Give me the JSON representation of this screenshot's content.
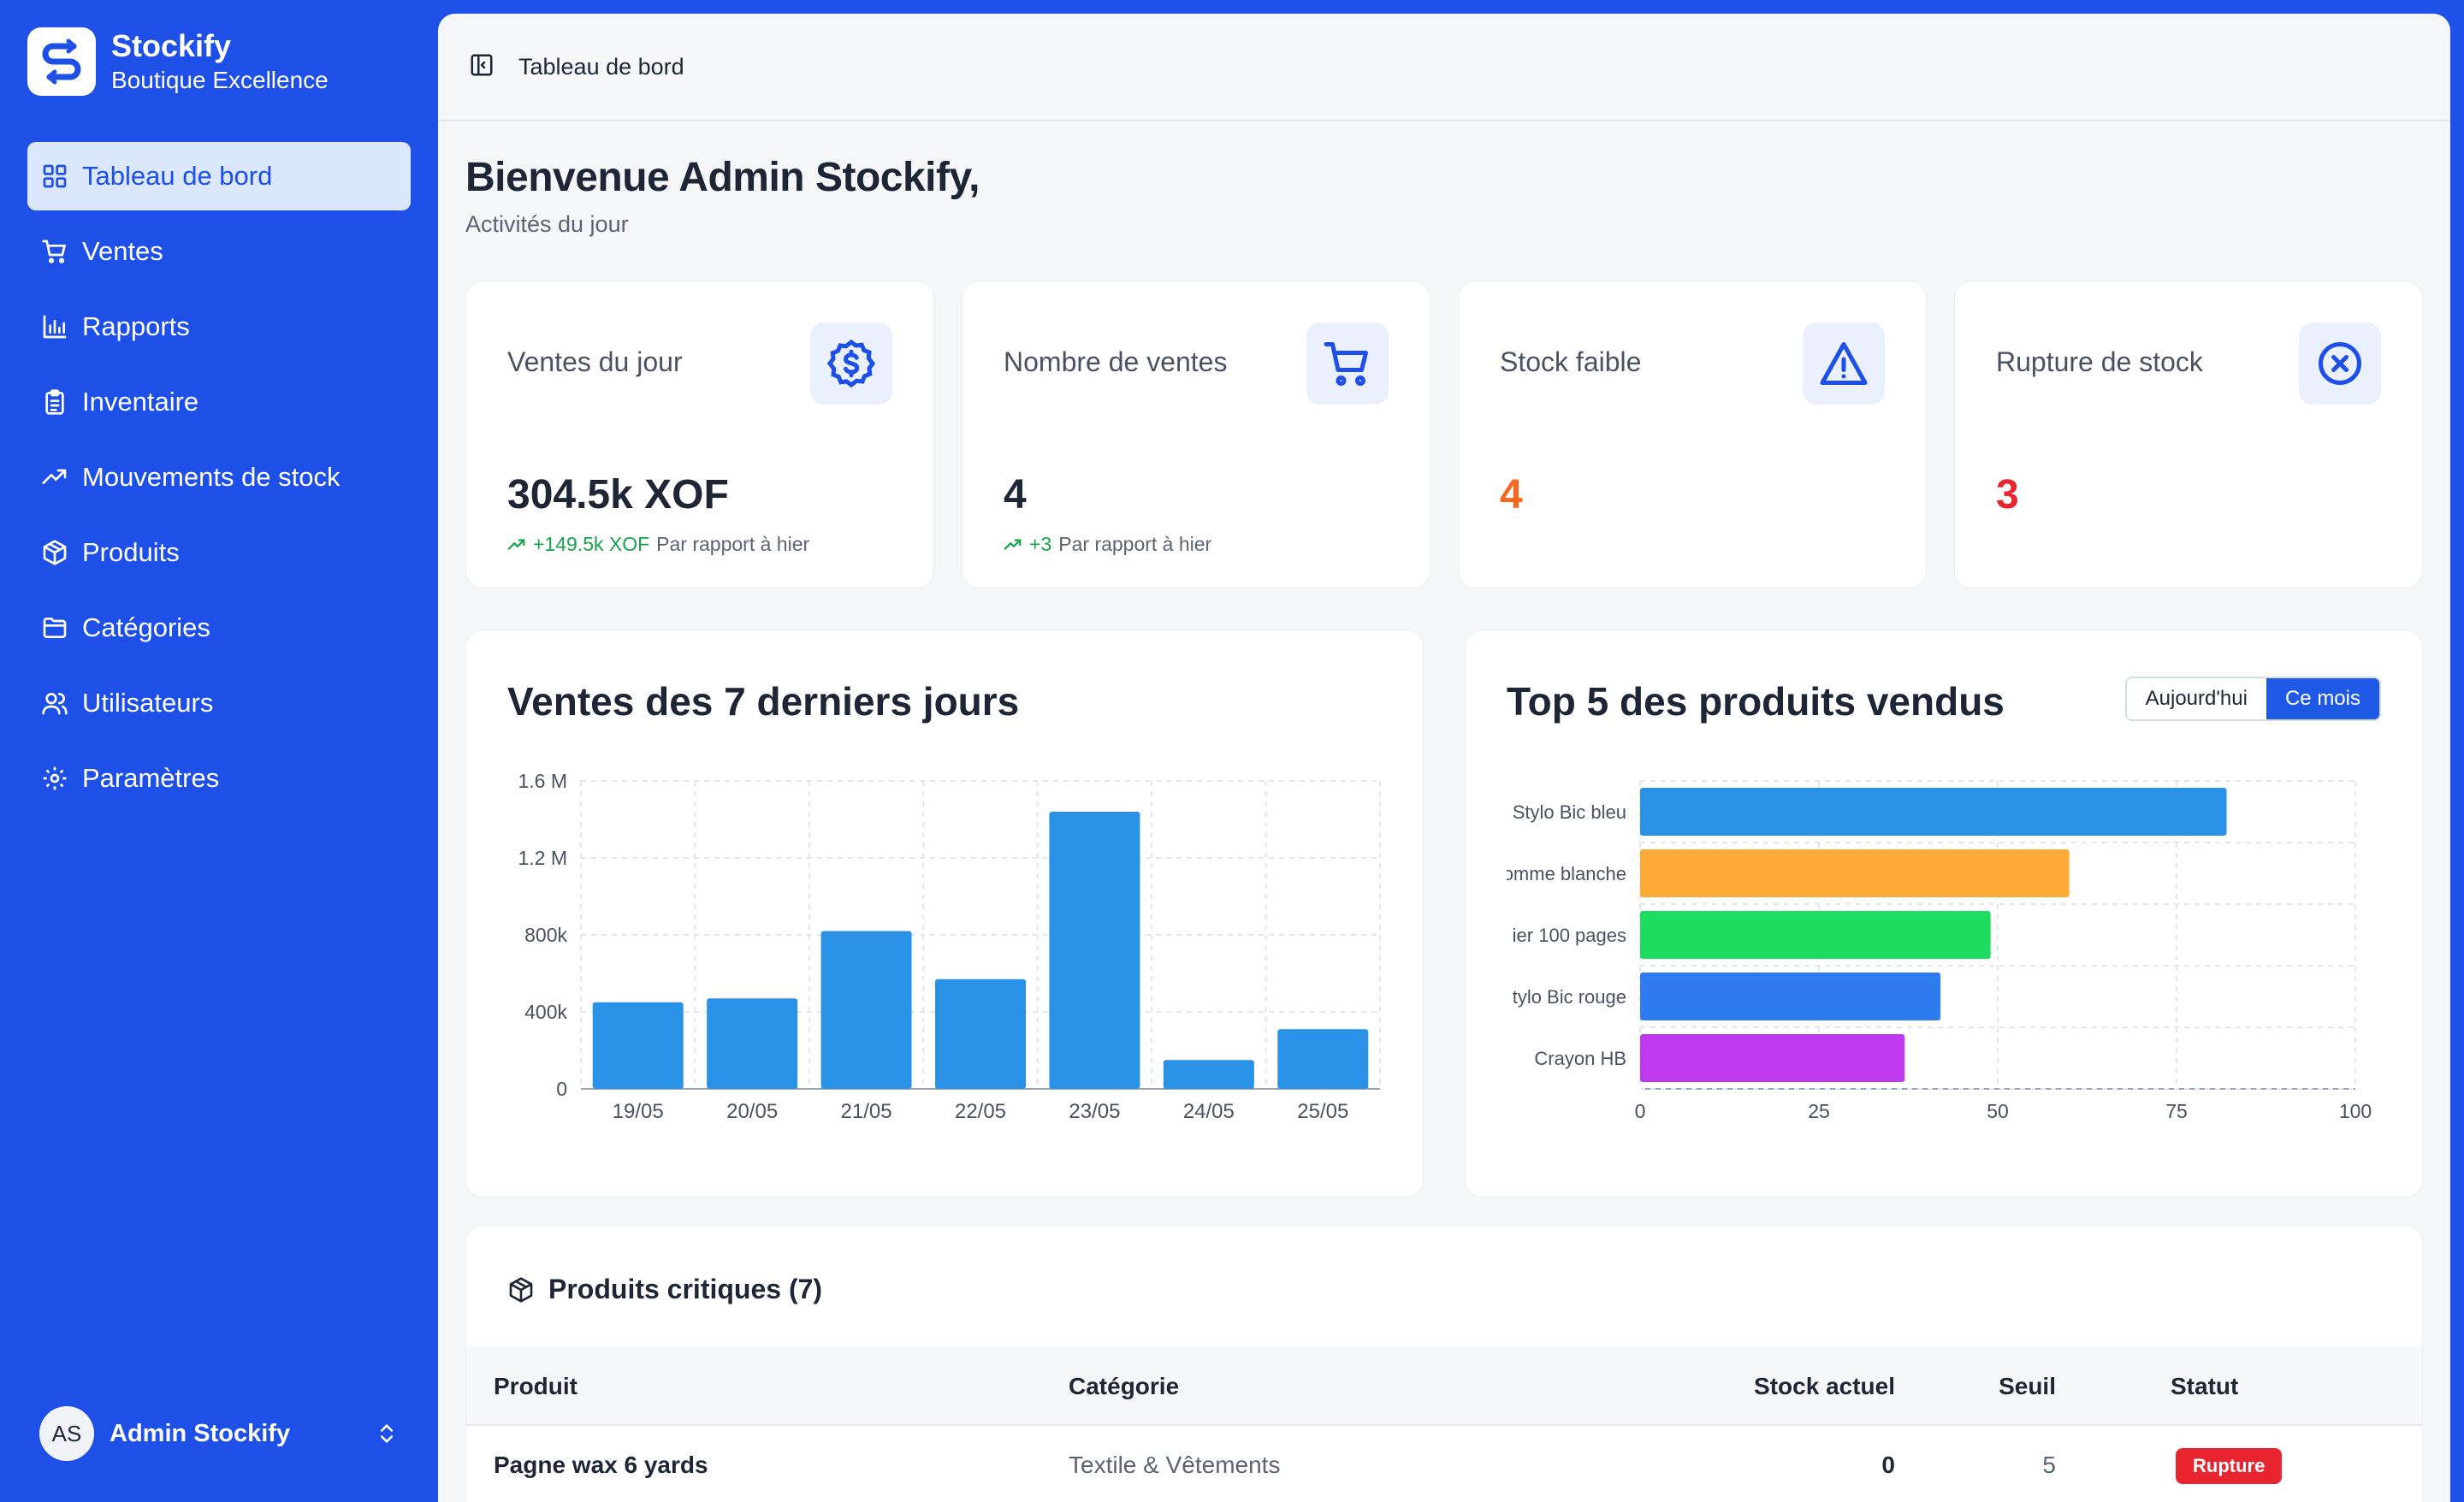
{
  "brand": {
    "name": "Stockify",
    "subtitle": "Boutique Excellence"
  },
  "nav": {
    "items": [
      {
        "label": "Tableau de bord",
        "icon": "grid-icon",
        "active": true
      },
      {
        "label": "Ventes",
        "icon": "cart-icon"
      },
      {
        "label": "Rapports",
        "icon": "bar-chart-icon"
      },
      {
        "label": "Inventaire",
        "icon": "clipboard-icon"
      },
      {
        "label": "Mouvements de stock",
        "icon": "trend-icon"
      },
      {
        "label": "Produits",
        "icon": "package-icon"
      },
      {
        "label": "Catégories",
        "icon": "folder-icon"
      },
      {
        "label": "Utilisateurs",
        "icon": "users-icon"
      },
      {
        "label": "Paramètres",
        "icon": "gear-icon"
      }
    ]
  },
  "user": {
    "initials": "AS",
    "name": "Admin Stockify"
  },
  "topbar": {
    "title": "Tableau de bord"
  },
  "welcome": {
    "title": "Bienvenue Admin Stockify,",
    "subtitle": "Activités du jour"
  },
  "kpis": [
    {
      "label": "Ventes du jour",
      "value": "304.5k XOF",
      "trend": "+149.5k XOF",
      "trend_text": "Par rapport à hier",
      "icon": "dollar-icon"
    },
    {
      "label": "Nombre de ventes",
      "value": "4",
      "trend": "+3",
      "trend_text": "Par rapport à hier",
      "icon": "cart-icon"
    },
    {
      "label": "Stock faible",
      "value": "4",
      "icon": "warning-icon",
      "color": "#f46a1f"
    },
    {
      "label": "Rupture de stock",
      "value": "3",
      "icon": "x-circle-icon",
      "color": "#e8242e"
    }
  ],
  "sales_chart": {
    "title": "Ventes des 7 derniers jours",
    "chart_data": {
      "type": "bar",
      "categories": [
        "19/05",
        "20/05",
        "21/05",
        "22/05",
        "23/05",
        "24/05",
        "25/05"
      ],
      "values": [
        450000,
        470000,
        820000,
        570000,
        1440000,
        150000,
        310000
      ],
      "y_ticks": [
        "0",
        "400k",
        "800k",
        "1.2 M",
        "1.6 M"
      ],
      "ylim": [
        0,
        1600000
      ],
      "color": "#2a92e6",
      "grid": true
    }
  },
  "top_chart": {
    "title": "Top 5 des produits vendus",
    "toggle": {
      "today": "Aujourd'hui",
      "month": "Ce mois"
    },
    "chart_data": {
      "type": "bar",
      "orientation": "horizontal",
      "categories": [
        "Stylo Bic bleu",
        "omme blanche",
        "ier 100 pages",
        "tylo Bic rouge",
        "Crayon HB"
      ],
      "values": [
        82,
        60,
        49,
        42,
        37
      ],
      "colors": [
        "#2a92e6",
        "#ffa938",
        "#1ddc60",
        "#2f7cf0",
        "#bf39ef"
      ],
      "x_ticks": [
        "0",
        "25",
        "50",
        "75",
        "100"
      ],
      "xlim": [
        0,
        100
      ],
      "grid": true
    }
  },
  "critical": {
    "title": "Produits critiques (7)",
    "columns": {
      "product": "Produit",
      "category": "Catégorie",
      "stock": "Stock actuel",
      "threshold": "Seuil",
      "status": "Statut"
    },
    "rows": [
      {
        "product": "Pagne wax 6 yards",
        "category": "Textile & Vêtements",
        "stock": "0",
        "threshold": "5",
        "status": "Rupture"
      }
    ]
  }
}
